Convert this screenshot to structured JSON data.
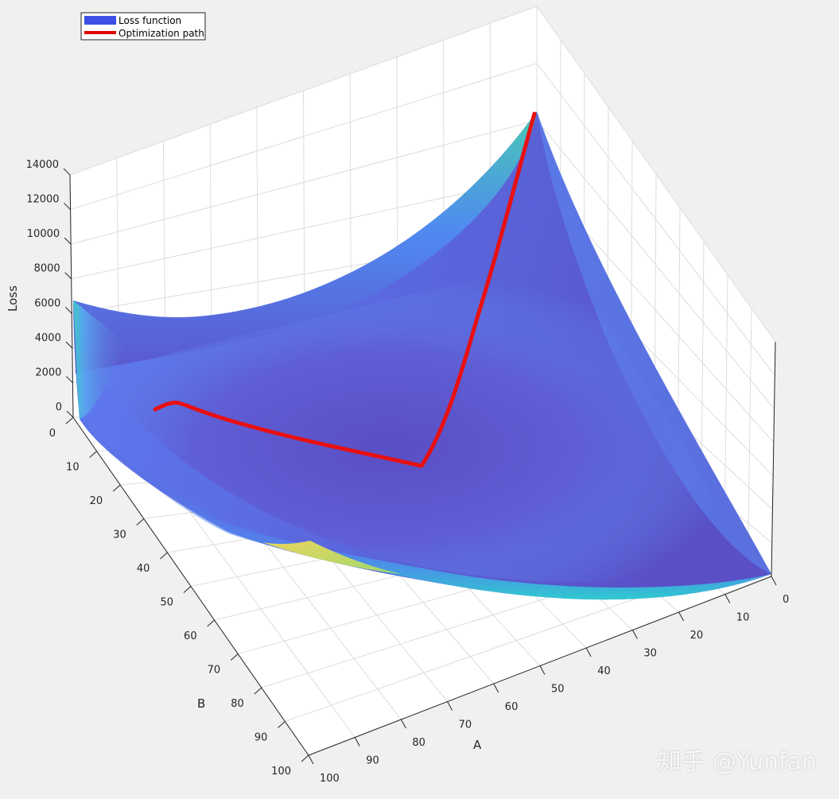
{
  "chart_data": {
    "type": "surface",
    "zlabel": "Loss",
    "xlabel": "A",
    "ylabel": "B",
    "z_ticks": [
      "0",
      "2000",
      "4000",
      "6000",
      "8000",
      "10000",
      "12000",
      "14000"
    ],
    "a_ticks": [
      "0",
      "10",
      "20",
      "30",
      "40",
      "50",
      "60",
      "70",
      "80",
      "90",
      "100"
    ],
    "b_ticks": [
      "0",
      "10",
      "20",
      "30",
      "40",
      "50",
      "60",
      "70",
      "80",
      "90",
      "100"
    ],
    "a_range": [
      0,
      100
    ],
    "b_range": [
      0,
      100
    ],
    "z_range": [
      0,
      14000
    ],
    "grid": true,
    "legend_position": "top-left",
    "legend": [
      {
        "label": "Loss function",
        "color": "#3d50e6"
      },
      {
        "label": "Optimization path",
        "color": "#e00000"
      }
    ],
    "path_color": "#e81010",
    "surface_colormap": [
      "#5a4ec7",
      "#4a8ff5",
      "#2dc6c6",
      "#79d279",
      "#e7d45c"
    ]
  },
  "watermark": "知乎 @Yunfan"
}
